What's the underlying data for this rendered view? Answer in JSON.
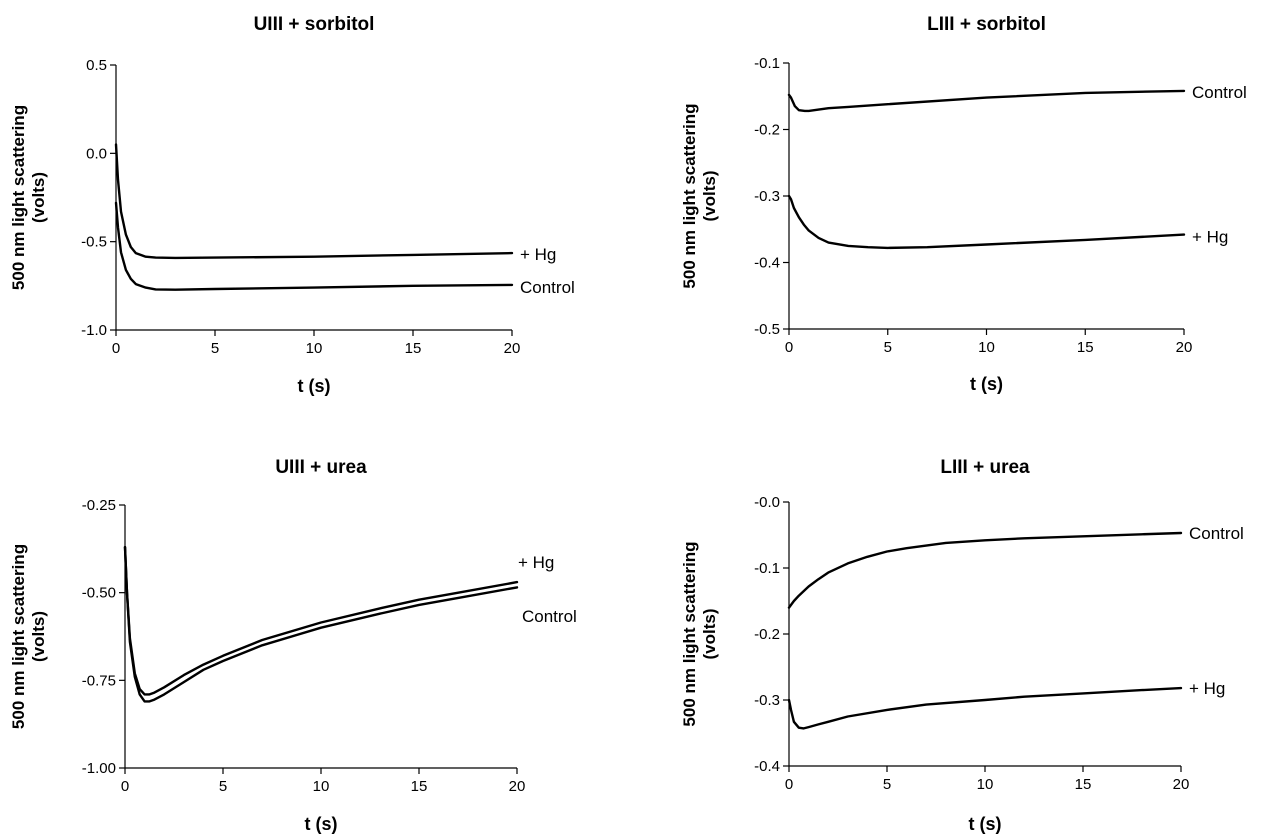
{
  "chart_data": [
    {
      "type": "line",
      "title": "UIII + sorbitol",
      "xlabel": "t (s)",
      "ylabel": "500 nm light scattering (volts)",
      "ylabel_lines": [
        "500 nm light scattering",
        "(volts)"
      ],
      "xlim": [
        0,
        20
      ],
      "ylim": [
        -1.0,
        0.5
      ],
      "xticks": [
        0,
        5,
        10,
        15,
        20
      ],
      "xtick_labels": [
        "0",
        "5",
        "10",
        "15",
        "20"
      ],
      "yticks": [
        -1.0,
        -0.5,
        0.0,
        0.5
      ],
      "ytick_labels": [
        "-1.0",
        "-0.5",
        "0.0",
        "0.5"
      ],
      "grid": false,
      "series": [
        {
          "name": "+ Hg",
          "x": [
            0,
            0.1,
            0.25,
            0.5,
            0.75,
            1,
            1.5,
            2,
            3,
            5,
            10,
            15,
            20
          ],
          "y": [
            0.05,
            -0.15,
            -0.33,
            -0.46,
            -0.53,
            -0.565,
            -0.585,
            -0.59,
            -0.592,
            -0.59,
            -0.585,
            -0.575,
            -0.565
          ]
        },
        {
          "name": "Control",
          "x": [
            0,
            0.1,
            0.25,
            0.5,
            0.75,
            1,
            1.5,
            2,
            3,
            5,
            10,
            15,
            20
          ],
          "y": [
            -0.28,
            -0.42,
            -0.56,
            -0.66,
            -0.71,
            -0.74,
            -0.76,
            -0.77,
            -0.772,
            -0.768,
            -0.76,
            -0.75,
            -0.745
          ]
        }
      ]
    },
    {
      "type": "line",
      "title": "LIII + sorbitol",
      "xlabel": "t (s)",
      "ylabel": "500 nm light scattering (volts)",
      "ylabel_lines": [
        "500 nm light scattering",
        "(volts)"
      ],
      "xlim": [
        0,
        20
      ],
      "ylim": [
        -0.5,
        -0.1
      ],
      "xticks": [
        0,
        5,
        10,
        15,
        20
      ],
      "xtick_labels": [
        "0",
        "5",
        "10",
        "15",
        "20"
      ],
      "yticks": [
        -0.5,
        -0.4,
        -0.3,
        -0.2,
        -0.1
      ],
      "ytick_labels": [
        "-0.5",
        "-0.4",
        "-0.3",
        "-0.2",
        "-0.1"
      ],
      "grid": false,
      "series": [
        {
          "name": "Control",
          "x": [
            0,
            0.1,
            0.3,
            0.5,
            0.8,
            1,
            1.5,
            2,
            3,
            5,
            10,
            15,
            20
          ],
          "y": [
            -0.148,
            -0.152,
            -0.165,
            -0.171,
            -0.172,
            -0.172,
            -0.17,
            -0.168,
            -0.166,
            -0.162,
            -0.152,
            -0.145,
            -0.142
          ]
        },
        {
          "name": "+ Hg",
          "x": [
            0,
            0.1,
            0.25,
            0.5,
            0.75,
            1,
            1.5,
            2,
            3,
            4,
            5,
            7,
            10,
            15,
            20
          ],
          "y": [
            -0.3,
            -0.305,
            -0.318,
            -0.332,
            -0.343,
            -0.352,
            -0.363,
            -0.37,
            -0.375,
            -0.377,
            -0.378,
            -0.377,
            -0.373,
            -0.366,
            -0.358
          ]
        }
      ]
    },
    {
      "type": "line",
      "title": "UIII + urea",
      "xlabel": "t (s)",
      "ylabel": "500 nm light scattering (volts)",
      "ylabel_lines": [
        "500 nm light scattering",
        "(volts)"
      ],
      "xlim": [
        0,
        20
      ],
      "ylim": [
        -1.0,
        -0.25
      ],
      "xticks": [
        0,
        5,
        10,
        15,
        20
      ],
      "xtick_labels": [
        "0",
        "5",
        "10",
        "15",
        "20"
      ],
      "yticks": [
        -1.0,
        -0.75,
        -0.5,
        -0.25
      ],
      "ytick_labels": [
        "-1.00",
        "-0.75",
        "-0.50",
        "-0.25"
      ],
      "grid": false,
      "series": [
        {
          "name": "+ Hg",
          "x": [
            0,
            0.1,
            0.25,
            0.5,
            0.75,
            1,
            1.25,
            1.5,
            2,
            3,
            4,
            5,
            7,
            10,
            13,
            15,
            17,
            20
          ],
          "y": [
            -0.37,
            -0.5,
            -0.63,
            -0.73,
            -0.775,
            -0.79,
            -0.79,
            -0.785,
            -0.77,
            -0.735,
            -0.705,
            -0.68,
            -0.635,
            -0.585,
            -0.545,
            -0.52,
            -0.5,
            -0.47
          ]
        },
        {
          "name": "Control",
          "x": [
            0,
            0.1,
            0.25,
            0.5,
            0.75,
            1,
            1.25,
            1.5,
            2,
            3,
            4,
            5,
            7,
            10,
            13,
            15,
            17,
            20
          ],
          "y": [
            -0.37,
            -0.5,
            -0.64,
            -0.74,
            -0.79,
            -0.81,
            -0.81,
            -0.805,
            -0.79,
            -0.755,
            -0.72,
            -0.695,
            -0.65,
            -0.6,
            -0.56,
            -0.535,
            -0.515,
            -0.485
          ]
        }
      ]
    },
    {
      "type": "line",
      "title": "LIII + urea",
      "xlabel": "t (s)",
      "ylabel": "500 nm light scattering (volts)",
      "ylabel_lines": [
        "500 nm light scattering",
        "(volts)"
      ],
      "xlim": [
        0,
        20
      ],
      "ylim": [
        -0.4,
        0.0
      ],
      "xticks": [
        0,
        5,
        10,
        15,
        20
      ],
      "xtick_labels": [
        "0",
        "5",
        "10",
        "15",
        "20"
      ],
      "yticks": [
        -0.4,
        -0.3,
        -0.2,
        -0.1,
        0.0
      ],
      "ytick_labels": [
        "-0.4",
        "-0.3",
        "-0.2",
        "-0.1",
        "-0.0"
      ],
      "grid": false,
      "series": [
        {
          "name": "Control",
          "x": [
            0,
            0.25,
            0.5,
            1,
            1.5,
            2,
            3,
            4,
            5,
            6,
            8,
            10,
            12,
            15,
            18,
            20
          ],
          "y": [
            -0.16,
            -0.15,
            -0.142,
            -0.128,
            -0.117,
            -0.107,
            -0.093,
            -0.083,
            -0.075,
            -0.07,
            -0.062,
            -0.058,
            -0.055,
            -0.052,
            -0.049,
            -0.047
          ]
        },
        {
          "name": "+ Hg",
          "x": [
            0,
            0.1,
            0.25,
            0.5,
            0.75,
            1,
            1.5,
            2,
            3,
            5,
            7,
            10,
            12,
            15,
            18,
            20
          ],
          "y": [
            -0.3,
            -0.315,
            -0.333,
            -0.342,
            -0.343,
            -0.341,
            -0.337,
            -0.333,
            -0.325,
            -0.315,
            -0.307,
            -0.3,
            -0.295,
            -0.29,
            -0.285,
            -0.282
          ]
        }
      ]
    }
  ]
}
